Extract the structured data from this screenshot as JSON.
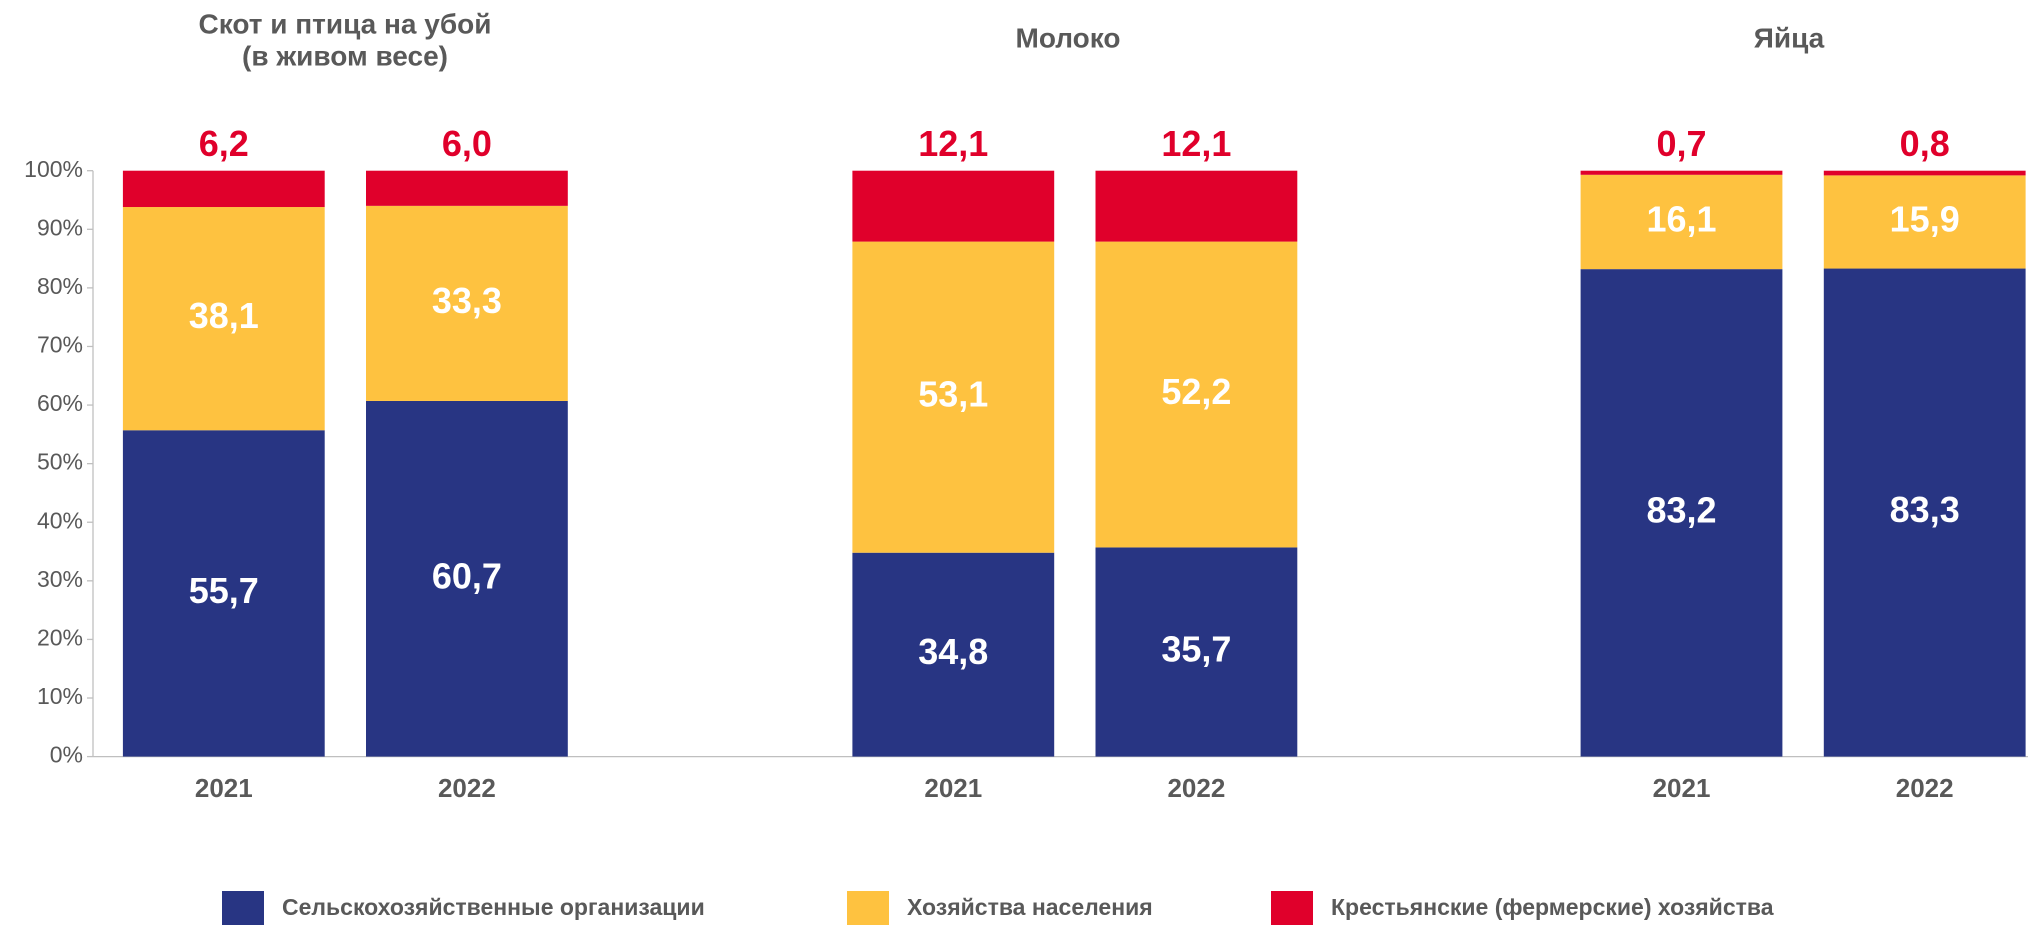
{
  "chart_data": {
    "type": "stacked_bar",
    "groups": [
      {
        "title": [
          "Скот и птица на убой",
          "(в живом весе)"
        ]
      },
      {
        "title": [
          "Молоко"
        ]
      },
      {
        "title": [
          "Яйца"
        ]
      }
    ],
    "categories": [
      "2021",
      "2022",
      "2021",
      "2022",
      "2021",
      "2022"
    ],
    "series": [
      {
        "name": "Сельскохозяйственные организации",
        "color": "#283583",
        "values": [
          55.7,
          60.7,
          34.8,
          35.7,
          83.2,
          83.3
        ],
        "value_labels": [
          "55,7",
          "60,7",
          "34,8",
          "35,7",
          "83,2",
          "83,3"
        ]
      },
      {
        "name": "Хозяйства населения",
        "color": "#fec240",
        "values": [
          38.1,
          33.3,
          53.1,
          52.2,
          16.1,
          15.9
        ],
        "value_labels": [
          "38,1",
          "33,3",
          "53,1",
          "52,2",
          "16,1",
          "15,9"
        ]
      },
      {
        "name": "Крестьянские (фермерские) хозяйства",
        "color": "#e0002b",
        "values": [
          6.2,
          6.0,
          12.1,
          12.1,
          0.7,
          0.8
        ],
        "value_labels": [
          "6,2",
          "6,0",
          "12,1",
          "12,1",
          "0,7",
          "0,8"
        ]
      }
    ],
    "ylim": [
      0,
      100
    ],
    "yticks": [
      {
        "value": 0,
        "label": "0%"
      },
      {
        "value": 10,
        "label": "10%"
      },
      {
        "value": 20,
        "label": "20%"
      },
      {
        "value": 30,
        "label": "30%"
      },
      {
        "value": 40,
        "label": "40%"
      },
      {
        "value": 50,
        "label": "50%"
      },
      {
        "value": 60,
        "label": "60%"
      },
      {
        "value": 70,
        "label": "70%"
      },
      {
        "value": 80,
        "label": "80%"
      },
      {
        "value": 90,
        "label": "90%"
      },
      {
        "value": 100,
        "label": "100%"
      }
    ],
    "legend": "bottom"
  }
}
